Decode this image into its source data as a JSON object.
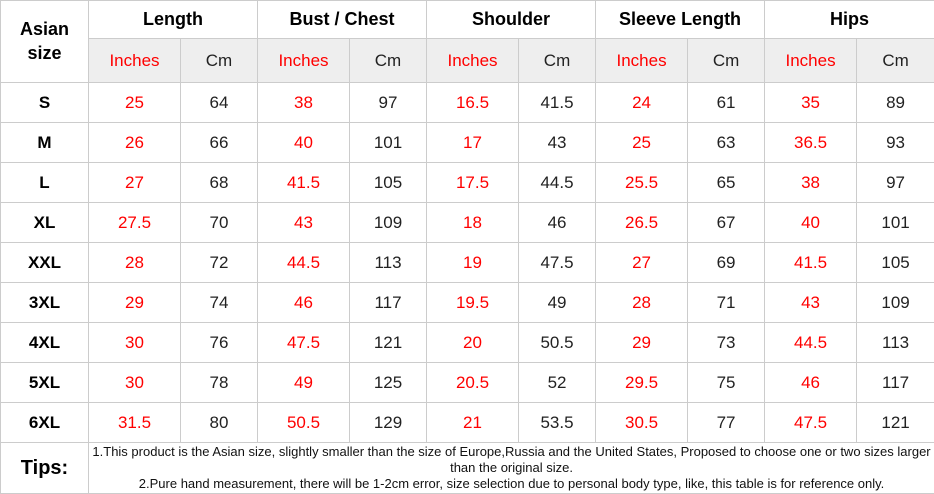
{
  "table": {
    "corner_label": "Asian size",
    "groups": [
      {
        "label": "Length",
        "columns": [
          "Inches",
          "Cm"
        ]
      },
      {
        "label": "Bust / Chest",
        "columns": [
          "Inches",
          "Cm"
        ]
      },
      {
        "label": "Shoulder",
        "columns": [
          "Inches",
          "Cm"
        ]
      },
      {
        "label": "Sleeve Length",
        "columns": [
          "Inches",
          "Cm"
        ]
      },
      {
        "label": "Hips",
        "columns": [
          "Inches",
          "Cm"
        ]
      }
    ],
    "rows": [
      {
        "size": "S",
        "values": [
          "25",
          "64",
          "38",
          "97",
          "16.5",
          "41.5",
          "24",
          "61",
          "35",
          "89"
        ]
      },
      {
        "size": "M",
        "values": [
          "26",
          "66",
          "40",
          "101",
          "17",
          "43",
          "25",
          "63",
          "36.5",
          "93"
        ]
      },
      {
        "size": "L",
        "values": [
          "27",
          "68",
          "41.5",
          "105",
          "17.5",
          "44.5",
          "25.5",
          "65",
          "38",
          "97"
        ]
      },
      {
        "size": "XL",
        "values": [
          "27.5",
          "70",
          "43",
          "109",
          "18",
          "46",
          "26.5",
          "67",
          "40",
          "101"
        ]
      },
      {
        "size": "XXL",
        "values": [
          "28",
          "72",
          "44.5",
          "113",
          "19",
          "47.5",
          "27",
          "69",
          "41.5",
          "105"
        ]
      },
      {
        "size": "3XL",
        "values": [
          "29",
          "74",
          "46",
          "117",
          "19.5",
          "49",
          "28",
          "71",
          "43",
          "109"
        ]
      },
      {
        "size": "4XL",
        "values": [
          "30",
          "76",
          "47.5",
          "121",
          "20",
          "50.5",
          "29",
          "73",
          "44.5",
          "113"
        ]
      },
      {
        "size": "5XL",
        "values": [
          "30",
          "78",
          "49",
          "125",
          "20.5",
          "52",
          "29.5",
          "75",
          "46",
          "117"
        ]
      },
      {
        "size": "6XL",
        "values": [
          "31.5",
          "80",
          "50.5",
          "129",
          "21",
          "53.5",
          "30.5",
          "77",
          "47.5",
          "121"
        ]
      }
    ],
    "tips": {
      "label": "Tips:",
      "lines": [
        "1.This product is the Asian size, slightly smaller than the size of Europe,Russia and the United States, Proposed to choose one or two sizes larger than the original size.",
        "2.Pure hand measurement, there will be 1-2cm error, size selection due to personal body type, like, this table is for reference only."
      ]
    }
  },
  "colors": {
    "accent_red": "#ff0000",
    "text_dark": "#222222",
    "border": "#cccccc",
    "header_bg": "#eeeeee"
  }
}
